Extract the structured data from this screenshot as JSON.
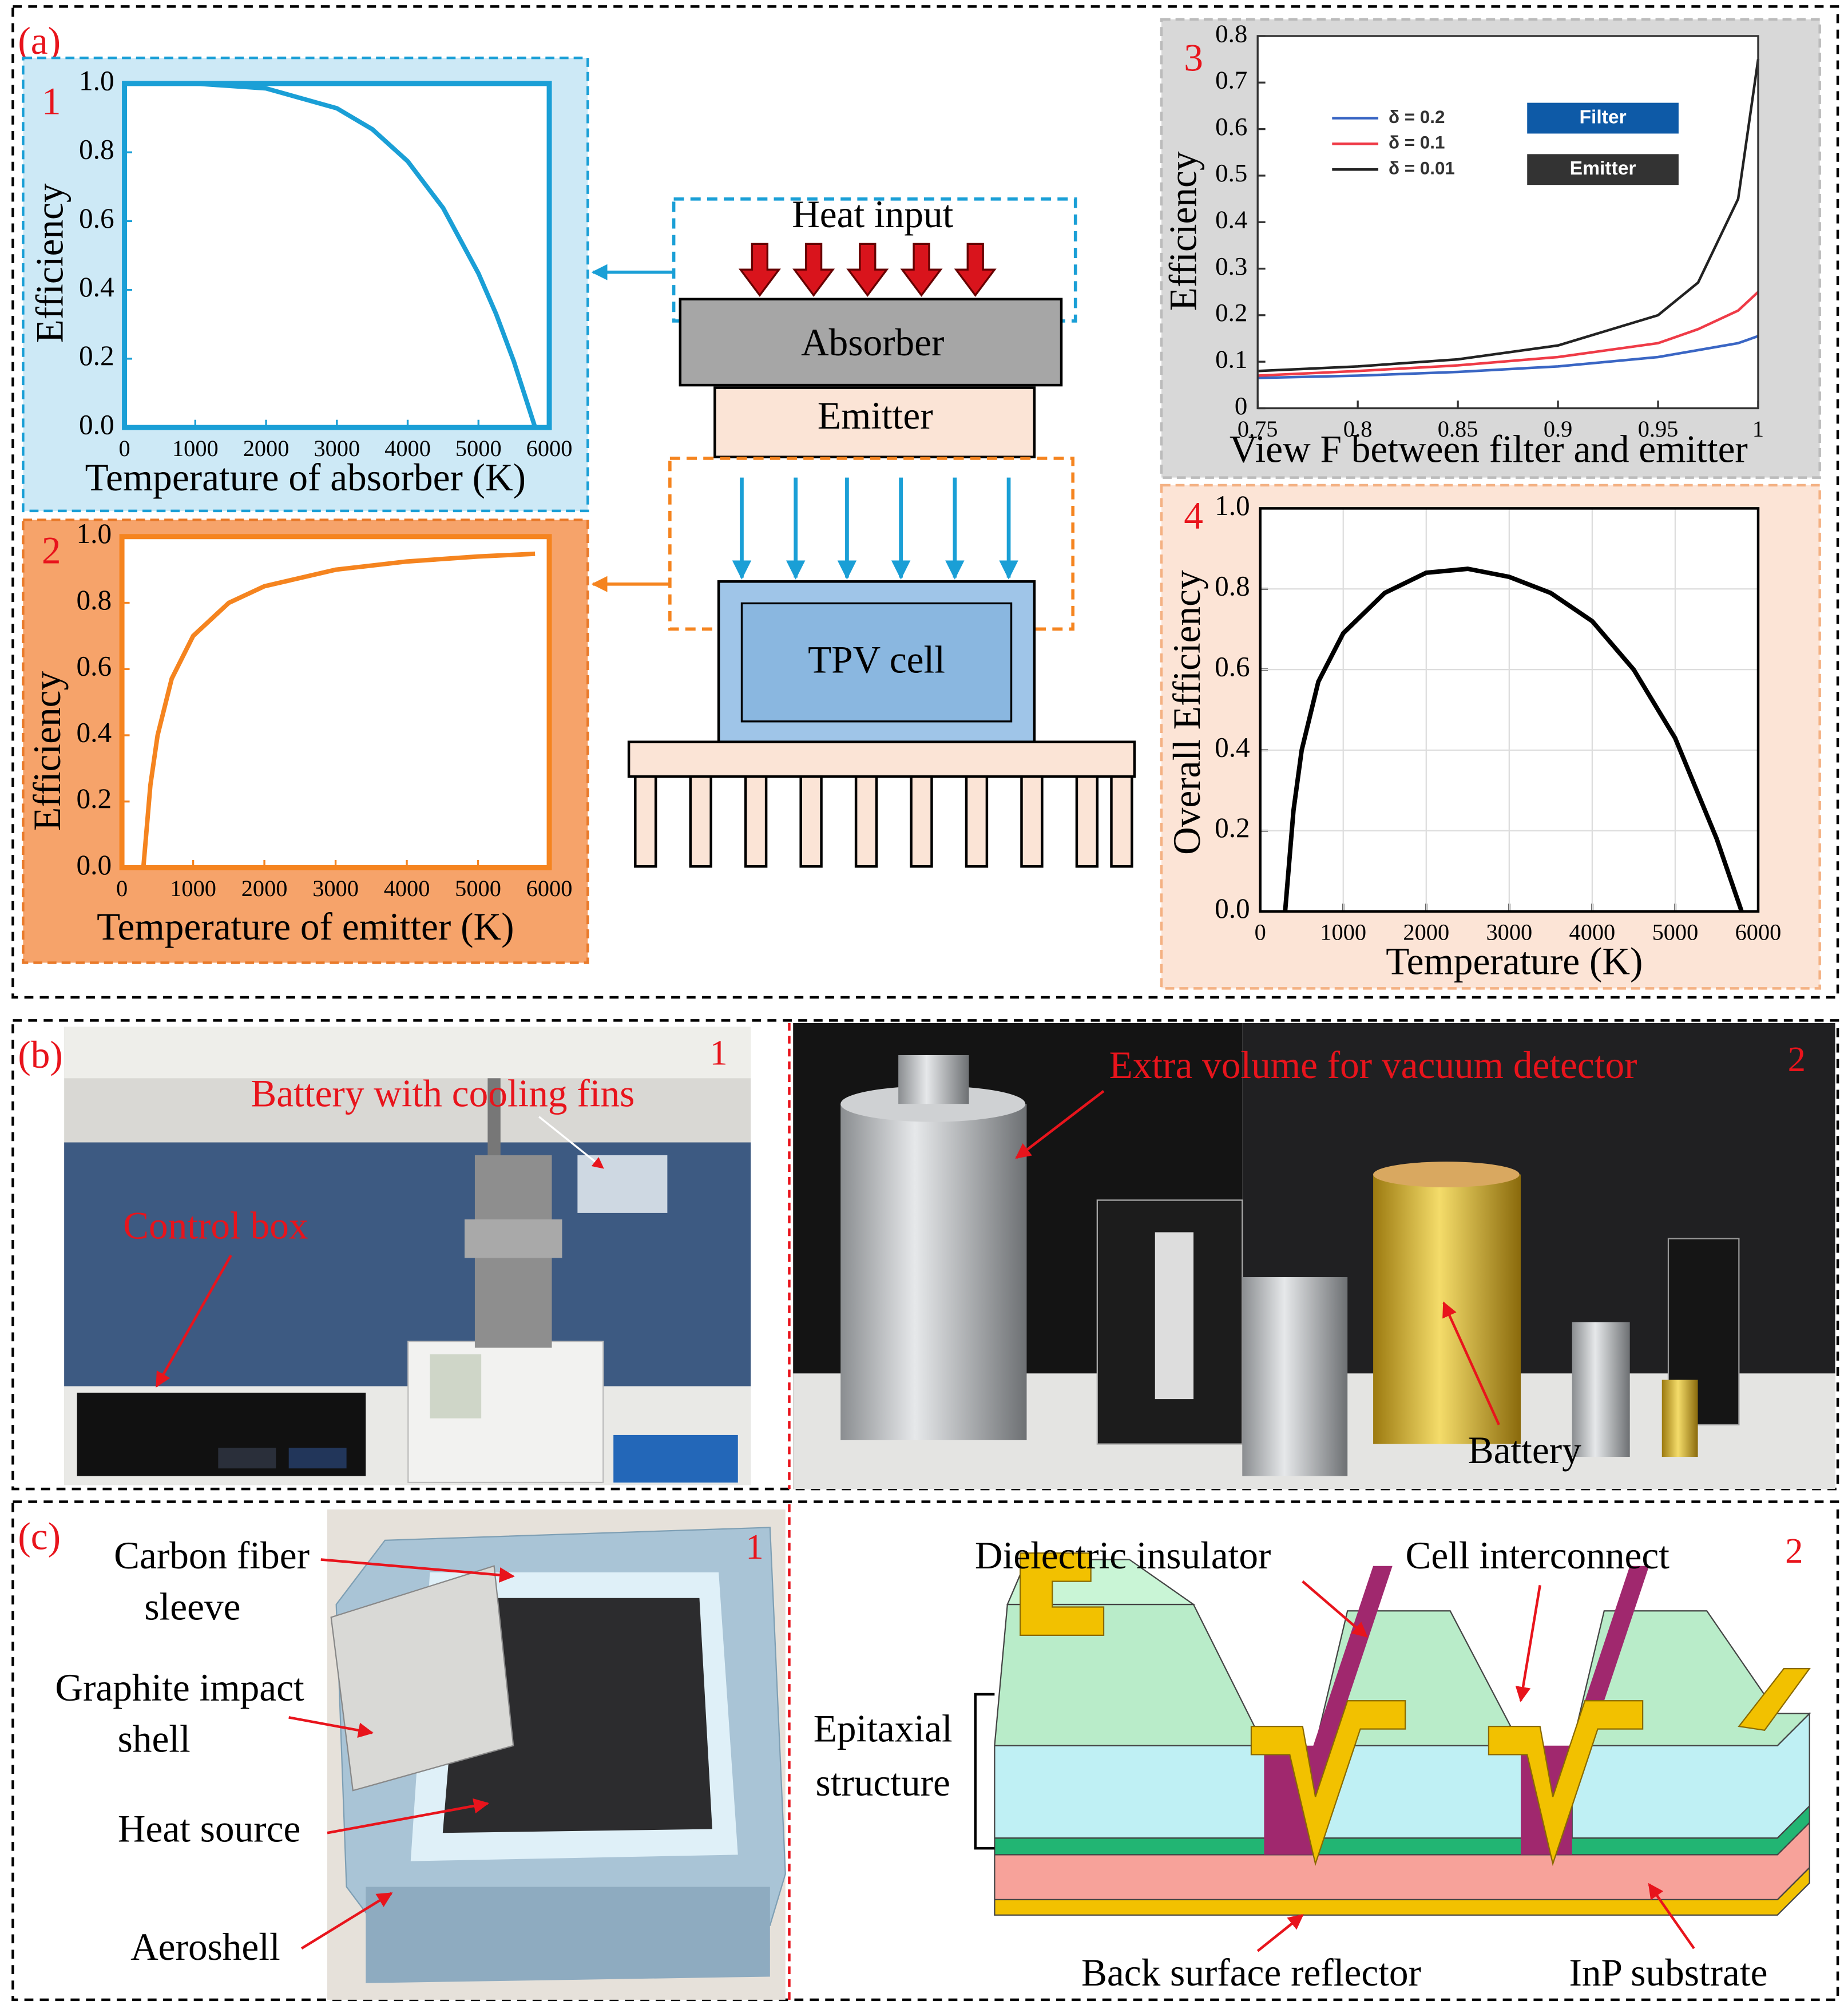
{
  "chart_data": [
    {
      "type": "line",
      "title": "1",
      "x_label": "Temperature of absorber (K)",
      "y_label": "Efficiency",
      "x": [
        0,
        1000,
        2000,
        3000,
        3500,
        4000,
        4500,
        5000,
        5250,
        5500,
        5800
      ],
      "series": [
        {
          "name": "Absorber efficiency",
          "color": "#1a9fd6",
          "values": [
            1.0,
            1.0,
            0.986,
            0.928,
            0.867,
            0.774,
            0.638,
            0.448,
            0.33,
            0.192,
            0
          ]
        }
      ],
      "xlim": [
        0,
        6000
      ],
      "xticks": [
        0,
        1000,
        2000,
        3000,
        4000,
        5000,
        6000
      ],
      "ylim": [
        0,
        1
      ],
      "yticks": [
        {
          "value": 0,
          "label": "0.0"
        },
        0.2,
        0.4,
        0.6,
        0.8,
        {
          "value": 1,
          "label": "1.0"
        }
      ],
      "grid": false
    },
    {
      "type": "line",
      "title": "2",
      "x_label": "Temperature of emitter (K)",
      "y_label": "Efficiency",
      "x": [
        300,
        400,
        500,
        700,
        1000,
        1500,
        2000,
        3000,
        4000,
        5000,
        5800
      ],
      "series": [
        {
          "name": "Emitter efficiency",
          "color": "#f5841f",
          "values": [
            0,
            0.25,
            0.4,
            0.571,
            0.7,
            0.8,
            0.85,
            0.9,
            0.925,
            0.94,
            0.948
          ]
        }
      ],
      "xlim": [
        0,
        6000
      ],
      "xticks": [
        0,
        1000,
        2000,
        3000,
        4000,
        5000,
        6000
      ],
      "ylim": [
        0,
        1
      ],
      "yticks": [
        {
          "value": 0,
          "label": "0.0"
        },
        0.2,
        0.4,
        0.6,
        0.8,
        {
          "value": 1,
          "label": "1.0"
        }
      ],
      "grid": false
    },
    {
      "type": "line",
      "title": "3",
      "x_label": "View F between filter and emitter",
      "y_label": "Efficiency",
      "x": [
        0.75,
        0.8,
        0.85,
        0.9,
        0.95,
        0.97,
        0.99,
        1
      ],
      "series": [
        {
          "name": "δ = 0.2",
          "color": "#3a66c4",
          "values": [
            0.065,
            0.07,
            0.078,
            0.09,
            0.11,
            0.125,
            0.14,
            0.155
          ]
        },
        {
          "name": "δ = 0.1",
          "color": "#ef3b47",
          "values": [
            0.07,
            0.08,
            0.092,
            0.11,
            0.14,
            0.17,
            0.21,
            0.25
          ]
        },
        {
          "name": "δ = 0.01",
          "color": "#222222",
          "values": [
            0.08,
            0.09,
            0.105,
            0.135,
            0.2,
            0.27,
            0.45,
            0.75
          ]
        }
      ],
      "annotations": [
        {
          "text": "Filter",
          "color": "#0e5aa7"
        },
        {
          "text": "Emitter",
          "color": "#333333"
        }
      ],
      "legend": "upper left",
      "xlim": [
        0.75,
        1
      ],
      "xticks": [
        0.75,
        0.8,
        0.85,
        0.9,
        0.95,
        1
      ],
      "ylim": [
        0,
        0.8
      ],
      "yticks": [
        0,
        0.1,
        0.2,
        0.3,
        0.4,
        0.5,
        0.6,
        0.7,
        0.8
      ],
      "grid": false
    },
    {
      "type": "line",
      "title": "4",
      "x_label": "Temperature (K)",
      "y_label": "Overall Efficiency",
      "x": [
        300,
        400,
        500,
        700,
        1000,
        1500,
        2000,
        2500,
        3000,
        3500,
        4000,
        4500,
        5000,
        5500,
        5800
      ],
      "series": [
        {
          "name": "Overall efficiency",
          "color": "#000000",
          "values": [
            0,
            0.25,
            0.4,
            0.57,
            0.69,
            0.79,
            0.84,
            0.85,
            0.83,
            0.79,
            0.72,
            0.6,
            0.43,
            0.18,
            0
          ]
        }
      ],
      "xlim": [
        0,
        6000
      ],
      "xticks": [
        0,
        1000,
        2000,
        3000,
        4000,
        5000,
        6000
      ],
      "ylim": [
        0,
        1
      ],
      "yticks": [
        {
          "value": 0,
          "label": "0.0"
        },
        0.2,
        0.4,
        0.6,
        0.8,
        {
          "value": 1,
          "label": "1.0"
        }
      ],
      "grid": true
    }
  ],
  "diagram": {
    "a": {
      "label": "(a)",
      "heat_input": "Heat input",
      "absorber": "Absorber",
      "emitter": "Emitter",
      "tpv_cell": "TPV cell"
    },
    "b": {
      "label": "(b)",
      "photo1_number": "1",
      "photo2_number": "2",
      "battery_with_cooling_fins": "Battery with cooling fins",
      "control_box": "Control box",
      "extra_volume": "Extra volume for vacuum detector",
      "battery": "Battery"
    },
    "c": {
      "label": "(c)",
      "photo1_number": "1",
      "photo2_number": "2",
      "carbon_fiber_sleeve": [
        "Carbon fiber",
        "sleeve"
      ],
      "graphite_impact_shell": [
        "Graphite impact",
        "shell"
      ],
      "heat_source": "Heat source",
      "aeroshell": "Aeroshell",
      "dielectric_insulator": "Dielectric insulator",
      "cell_interconnect": "Cell interconnect",
      "epitaxial_structure": [
        "Epitaxial",
        "structure"
      ],
      "back_surface_reflector": "Back surface reflector",
      "inp_substrate": "InP substrate"
    }
  }
}
